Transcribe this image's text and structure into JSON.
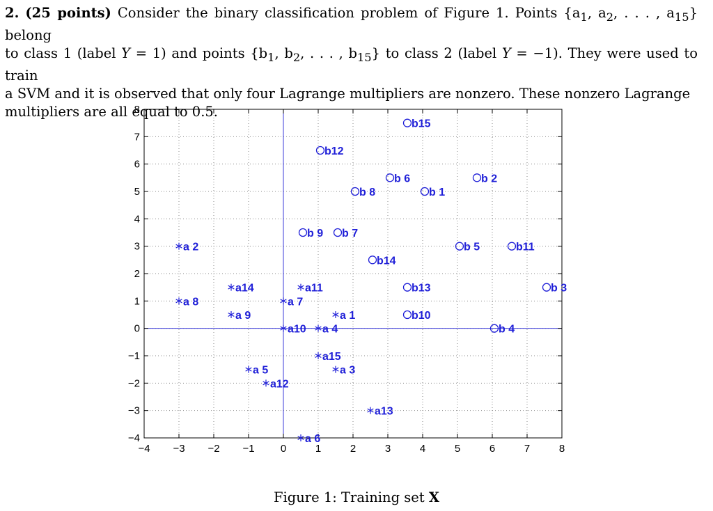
{
  "problem": {
    "number": "2.",
    "points_label": "(25 points)",
    "line1": " Consider the binary classification problem of Figure 1. Points {a",
    "a_sub1": "1",
    "sep1": ", a",
    "a_sub2": "2",
    "sep2": ", . . . , a",
    "a_sub15": "15",
    "line1_end": "} belong",
    "line2a": "to class 1 (label ",
    "Y1": "Y",
    "line2b": " = 1) and points {b",
    "b_sub1": "1",
    "bsep1": ", b",
    "b_sub2": "2",
    "bsep2": ", . . . , b",
    "b_sub15": "15",
    "line2c": "} to class 2 (label ",
    "Y2": "Y",
    "line2d": " = −1). They were used to train",
    "line3": "a SVM and it is observed that only four Lagrange multipliers are nonzero. These nonzero Lagrange",
    "line4": "multipliers are all equal to 0.5."
  },
  "caption": {
    "label": "Figure 1: Training set ",
    "symbol": "X"
  },
  "colors": {
    "marker": "#1f1fd8",
    "axis_line": "#3a3ad8",
    "grid": "#888888",
    "frame": "#000000"
  },
  "chart_data": {
    "type": "scatter",
    "title": "",
    "xlabel": "",
    "ylabel": "",
    "xlim": [
      -4,
      8
    ],
    "ylim": [
      -4,
      8
    ],
    "xticks": [
      -4,
      -3,
      -2,
      -1,
      0,
      1,
      2,
      3,
      4,
      5,
      6,
      7,
      8
    ],
    "yticks": [
      -4,
      -3,
      -2,
      -1,
      0,
      1,
      2,
      3,
      4,
      5,
      6,
      7,
      8
    ],
    "xtick_labels": [
      "−4",
      "−3",
      "−2",
      "−1",
      "0",
      "1",
      "2",
      "3",
      "4",
      "5",
      "6",
      "7",
      "8"
    ],
    "ytick_labels": [
      "−4",
      "−3",
      "−2",
      "−1",
      "0",
      "1",
      "2",
      "3",
      "4",
      "5",
      "6",
      "7",
      "8"
    ],
    "grid": "dotted",
    "axis_lines": "x=0 and y=0",
    "series": [
      {
        "marker": "asterisk",
        "points": [
          {
            "label": "a 1",
            "x": 1.5,
            "y": 0.5
          },
          {
            "label": "a 2",
            "x": -3,
            "y": 3
          },
          {
            "label": "a 3",
            "x": 1.5,
            "y": -1.5
          },
          {
            "label": "a 4",
            "x": 1,
            "y": 0
          },
          {
            "label": "a 5",
            "x": -1,
            "y": -1.5
          },
          {
            "label": "a 6",
            "x": 0.5,
            "y": -4
          },
          {
            "label": "a 7",
            "x": 0,
            "y": 1
          },
          {
            "label": "a 8",
            "x": -3,
            "y": 1
          },
          {
            "label": "a 9",
            "x": -1.5,
            "y": 0.5
          },
          {
            "label": "a10",
            "x": 0,
            "y": 0
          },
          {
            "label": "a11",
            "x": 0.5,
            "y": 1.5
          },
          {
            "label": "a12",
            "x": -0.5,
            "y": -2
          },
          {
            "label": "a13",
            "x": 2.5,
            "y": -3
          },
          {
            "label": "a14",
            "x": -1.5,
            "y": 1.5
          },
          {
            "label": "a15",
            "x": 1,
            "y": -1
          }
        ]
      },
      {
        "marker": "circle",
        "points": [
          {
            "label": "b 1",
            "x": 4,
            "y": 5
          },
          {
            "label": "b 2",
            "x": 5.5,
            "y": 5.5
          },
          {
            "label": "b 3",
            "x": 7.5,
            "y": 1.5
          },
          {
            "label": "b 4",
            "x": 6,
            "y": 0
          },
          {
            "label": "b 5",
            "x": 5,
            "y": 3
          },
          {
            "label": "b 6",
            "x": 3,
            "y": 5.5
          },
          {
            "label": "b 7",
            "x": 1.5,
            "y": 3.5
          },
          {
            "label": "b 8",
            "x": 2,
            "y": 5
          },
          {
            "label": "b 9",
            "x": 0.5,
            "y": 3.5
          },
          {
            "label": "b10",
            "x": 3.5,
            "y": 0.5
          },
          {
            "label": "b11",
            "x": 6.5,
            "y": 3
          },
          {
            "label": "b12",
            "x": 1,
            "y": 6.5
          },
          {
            "label": "b13",
            "x": 3.5,
            "y": 1.5
          },
          {
            "label": "b14",
            "x": 2.5,
            "y": 2.5
          },
          {
            "label": "b15",
            "x": 3.5,
            "y": 7.5
          }
        ]
      }
    ]
  }
}
